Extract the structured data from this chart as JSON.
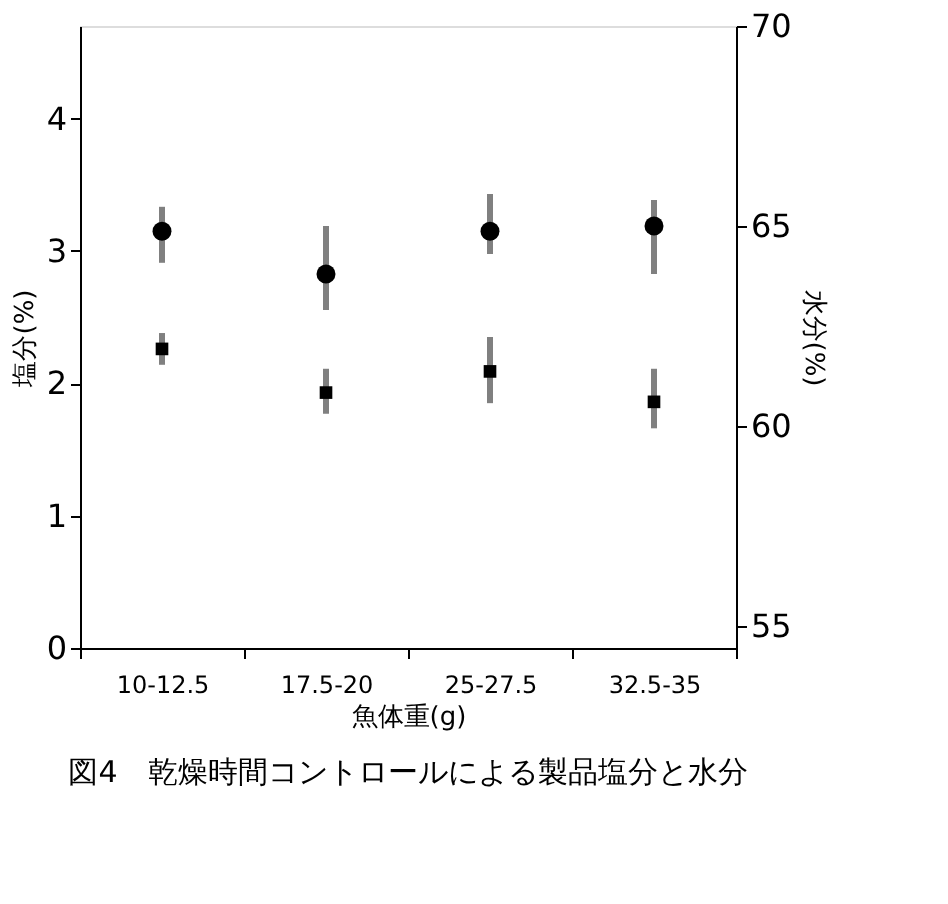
{
  "chart_data": {
    "type": "scatter",
    "title": "図4　乾燥時間コントロールによる製品塩分と水分",
    "xlabel": "魚体重(g)",
    "ylabel": "塩分(%)",
    "y2label": "水分(%)",
    "categories": [
      "10-12.5",
      "17.5-20",
      "25-27.5",
      "32.5-35"
    ],
    "series": [
      {
        "marker": "square",
        "color": "#000000",
        "values": [
          2.26,
          1.93,
          2.09,
          1.86
        ],
        "errors": [
          [
            2.14,
            2.38
          ],
          [
            1.77,
            2.11
          ],
          [
            1.85,
            2.35
          ],
          [
            1.66,
            2.11
          ]
        ]
      },
      {
        "marker": "circle",
        "axis": "y2",
        "color": "#000000",
        "values": [
          64.87,
          63.8,
          64.87,
          65.0
        ],
        "errors": [
          [
            64.08,
            65.48
          ],
          [
            62.9,
            65.0
          ],
          [
            64.3,
            65.8
          ],
          [
            63.8,
            65.65
          ]
        ]
      }
    ],
    "ylim": [
      0,
      4.7
    ],
    "yticks": [
      0,
      1,
      2,
      3,
      4
    ],
    "y2lim": [
      54.45,
      70
    ],
    "y2ticks": [
      55,
      60,
      65,
      70
    ],
    "grid": false
  }
}
